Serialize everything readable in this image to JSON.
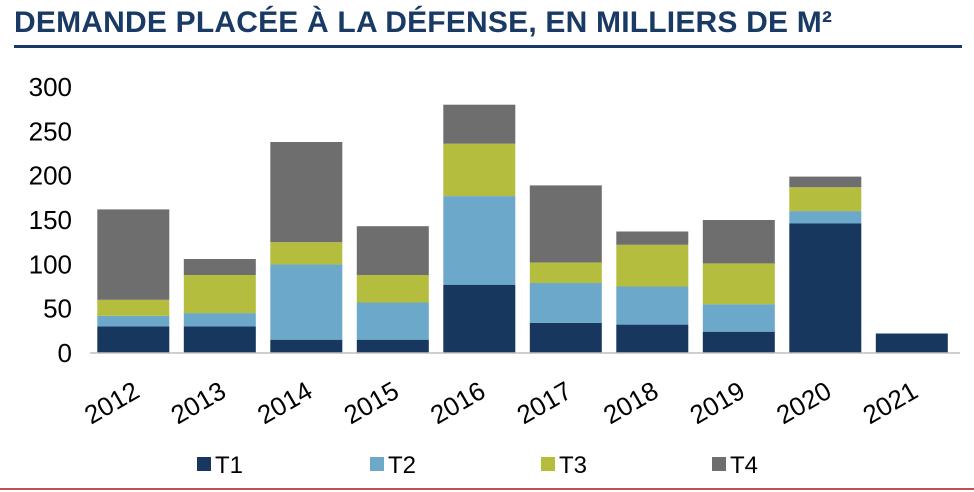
{
  "title": "DEMANDE PLACÉE À LA DÉFENSE, EN MILLIERS DE M²",
  "chart_data": {
    "type": "bar",
    "stacked": true,
    "title": "DEMANDE PLACÉE À LA DÉFENSE, EN MILLIERS DE M²",
    "xlabel": "",
    "ylabel": "",
    "ylim": [
      0,
      300
    ],
    "yticks": [
      0,
      50,
      100,
      150,
      200,
      250,
      300
    ],
    "grid": false,
    "legend_position": "bottom",
    "categories": [
      "2012",
      "2013",
      "2014",
      "2015",
      "2016",
      "2017",
      "2018",
      "2019",
      "2020",
      "2021"
    ],
    "series": [
      {
        "name": "T1",
        "color": "#17375e",
        "values": [
          30,
          30,
          15,
          15,
          77,
          34,
          32,
          24,
          146,
          22
        ]
      },
      {
        "name": "T2",
        "color": "#6ba8c9",
        "values": [
          12,
          15,
          85,
          42,
          100,
          45,
          43,
          31,
          14,
          0
        ]
      },
      {
        "name": "T3",
        "color": "#b5bd3e",
        "values": [
          18,
          43,
          25,
          31,
          59,
          23,
          47,
          46,
          27,
          0
        ]
      },
      {
        "name": "T4",
        "color": "#6e6e6e",
        "values": [
          102,
          18,
          113,
          55,
          44,
          87,
          15,
          49,
          12,
          0
        ]
      }
    ]
  }
}
